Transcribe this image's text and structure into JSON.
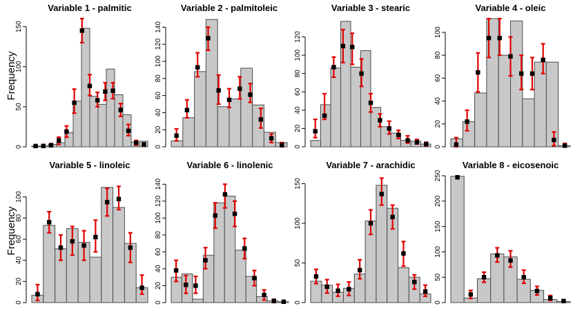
{
  "figure": {
    "ylabel": "Frequency",
    "colors": {
      "bar_fill": "#c8c8c8",
      "bar_stroke": "#4a4a4a",
      "errorbar": "#e00000",
      "point": "#000000",
      "axis": "#000000"
    }
  },
  "chart_data": [
    {
      "type": "bar",
      "title": "Variable 1 - palmitic",
      "ylim": [
        0,
        160
      ],
      "yticks": [
        0,
        50,
        100,
        150
      ],
      "values": [
        1,
        1,
        3,
        5,
        18,
        57,
        148,
        63,
        53,
        97,
        65,
        40,
        6,
        7
      ],
      "points": [
        1,
        1,
        2,
        8,
        19,
        55,
        145,
        76,
        58,
        69,
        70,
        46,
        20,
        5,
        3
      ],
      "err_low": [
        0,
        0,
        0,
        3,
        12,
        42,
        130,
        64,
        50,
        58,
        60,
        38,
        14,
        2,
        1
      ],
      "err_high": [
        2,
        3,
        4,
        12,
        26,
        72,
        160,
        90,
        68,
        80,
        80,
        54,
        28,
        8,
        5
      ]
    },
    {
      "type": "bar",
      "title": "Variable 2 - palmitoleic",
      "ylim": [
        0,
        150
      ],
      "yticks": [
        0,
        20,
        40,
        60,
        80,
        100,
        120,
        140
      ],
      "values": [
        7,
        34,
        88,
        149,
        47,
        56,
        92,
        49,
        17,
        5
      ],
      "points": [
        13,
        43,
        93,
        127,
        66,
        55,
        68,
        61,
        32,
        10,
        2
      ],
      "err_low": [
        7,
        34,
        82,
        113,
        50,
        46,
        56,
        52,
        22,
        5,
        0
      ],
      "err_high": [
        21,
        55,
        110,
        140,
        84,
        68,
        82,
        74,
        45,
        15,
        5
      ]
    },
    {
      "type": "bar",
      "title": "Variable 3 - stearic",
      "ylim": [
        0,
        140
      ],
      "yticks": [
        0,
        20,
        40,
        60,
        80,
        100,
        120
      ],
      "values": [
        7,
        46,
        86,
        137,
        87,
        105,
        43,
        22,
        15,
        7,
        6,
        3
      ],
      "points": [
        17,
        34,
        87,
        110,
        109,
        80,
        48,
        29,
        20,
        13,
        7,
        5,
        3
      ],
      "err_low": [
        10,
        30,
        76,
        92,
        90,
        66,
        38,
        22,
        14,
        9,
        4,
        3,
        1
      ],
      "err_high": [
        30,
        58,
        98,
        128,
        124,
        96,
        58,
        36,
        28,
        18,
        12,
        8,
        5
      ]
    },
    {
      "type": "bar",
      "title": "Variable 4 - oleic",
      "ylim": [
        0,
        112
      ],
      "yticks": [
        0,
        20,
        40,
        60,
        80,
        100
      ],
      "values": [
        7,
        22,
        47,
        112,
        80,
        110,
        42,
        74,
        74,
        1
      ],
      "points": [
        2,
        22,
        65,
        95,
        95,
        79,
        64,
        64,
        76,
        6,
        1
      ],
      "err_low": [
        0,
        14,
        48,
        78,
        80,
        62,
        50,
        50,
        64,
        1,
        0
      ],
      "err_high": [
        8,
        32,
        82,
        112,
        112,
        96,
        80,
        78,
        90,
        13,
        3
      ]
    },
    {
      "type": "bar",
      "title": "Variable 5 - linoleic",
      "ylim": [
        0,
        120
      ],
      "yticks": [
        0,
        20,
        40,
        60,
        80,
        100
      ],
      "values": [
        7,
        73,
        51,
        70,
        57,
        43,
        109,
        90,
        56,
        14
      ],
      "points": [
        8,
        76,
        52,
        58,
        54,
        62,
        95,
        98,
        52,
        14
      ],
      "err_low": [
        2,
        66,
        40,
        45,
        40,
        48,
        82,
        88,
        38,
        8
      ],
      "err_high": [
        17,
        86,
        64,
        72,
        68,
        78,
        108,
        110,
        66,
        26
      ]
    },
    {
      "type": "bar",
      "title": "Variable 6 - linolenic",
      "ylim": [
        0,
        150
      ],
      "yticks": [
        0,
        20,
        40,
        60,
        80,
        100,
        120,
        140
      ],
      "values": [
        30,
        34,
        4,
        56,
        118,
        126,
        62,
        31,
        7,
        2,
        1
      ],
      "points": [
        38,
        21,
        20,
        50,
        103,
        128,
        105,
        64,
        29,
        9,
        2,
        1
      ],
      "err_low": [
        25,
        11,
        11,
        40,
        88,
        112,
        90,
        52,
        20,
        3,
        0,
        0
      ],
      "err_high": [
        50,
        32,
        31,
        65,
        118,
        140,
        120,
        76,
        38,
        15,
        4,
        2
      ]
    },
    {
      "type": "bar",
      "title": "Variable 7 - arachidic",
      "ylim": [
        0,
        160
      ],
      "yticks": [
        0,
        50,
        100,
        150
      ],
      "values": [
        27,
        22,
        13,
        18,
        36,
        103,
        148,
        119,
        44,
        32,
        11
      ],
      "points": [
        33,
        20,
        15,
        17,
        41,
        100,
        137,
        108,
        62,
        26,
        14
      ],
      "err_low": [
        24,
        12,
        8,
        9,
        30,
        86,
        123,
        93,
        46,
        17,
        8
      ],
      "err_high": [
        42,
        29,
        23,
        26,
        54,
        117,
        157,
        123,
        77,
        35,
        22
      ]
    },
    {
      "type": "bar",
      "title": "Variable 8 - eicosenoic",
      "ylim": [
        0,
        250
      ],
      "yticks": [
        0,
        50,
        100,
        150,
        200,
        250
      ],
      "values": [
        249,
        9,
        47,
        96,
        90,
        46,
        24,
        6,
        2
      ],
      "points": [
        247,
        16,
        50,
        93,
        83,
        50,
        23,
        9,
        3
      ],
      "err_low": [
        244,
        8,
        40,
        80,
        70,
        38,
        15,
        4,
        1
      ],
      "err_high": [
        250,
        24,
        60,
        108,
        102,
        64,
        32,
        14,
        6
      ]
    }
  ]
}
